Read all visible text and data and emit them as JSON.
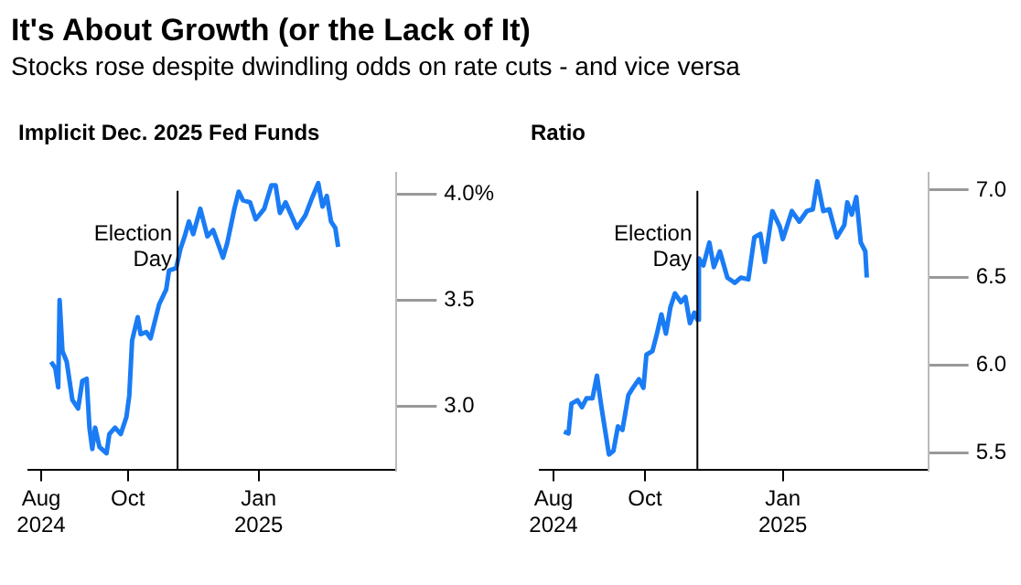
{
  "chart_data": [
    {
      "type": "line",
      "title": "Implicit Dec. 2025 Fed Funds",
      "annotations": [
        "It's About Growth (or the Lack of It)",
        "Stocks rose despite dwindling odds on rate cuts - and vice versa"
      ],
      "x": [
        "2024-08-08",
        "2024-08-11",
        "2024-08-13",
        "2024-08-14",
        "2024-08-16",
        "2024-08-19",
        "2024-08-23",
        "2024-08-27",
        "2024-08-30",
        "2024-09-02",
        "2024-09-04",
        "2024-09-06",
        "2024-09-08",
        "2024-09-11",
        "2024-09-16",
        "2024-09-18",
        "2024-09-22",
        "2024-09-26",
        "2024-09-30",
        "2024-10-02",
        "2024-10-04",
        "2024-10-08",
        "2024-10-10",
        "2024-10-14",
        "2024-10-17",
        "2024-10-23",
        "2024-10-28",
        "2024-10-30",
        "2024-11-04",
        "2024-11-07",
        "2024-11-10",
        "2024-11-13",
        "2024-11-16",
        "2024-11-21",
        "2024-11-26",
        "2024-11-30",
        "2024-12-07",
        "2024-12-10",
        "2024-12-15",
        "2024-12-18",
        "2024-12-21",
        "2024-12-26",
        "2024-12-30",
        "2025-01-05",
        "2025-01-10",
        "2025-01-13",
        "2025-01-16",
        "2025-01-20",
        "2025-01-28",
        "2025-02-03",
        "2025-02-07",
        "2025-02-12",
        "2025-02-15",
        "2025-02-18",
        "2025-02-21",
        "2025-02-24",
        "2025-02-26"
      ],
      "series": [
        {
          "color": "#1a7cf5",
          "values": [
            3.21,
            3.18,
            3.09,
            3.5,
            3.26,
            3.21,
            3.03,
            2.99,
            3.12,
            3.13,
            2.9,
            2.8,
            2.9,
            2.81,
            2.78,
            2.87,
            2.9,
            2.87,
            2.95,
            3.05,
            3.31,
            3.42,
            3.34,
            3.35,
            3.32,
            3.48,
            3.55,
            3.64,
            3.65,
            3.74,
            3.8,
            3.87,
            3.81,
            3.93,
            3.8,
            3.83,
            3.7,
            3.77,
            3.93,
            4.01,
            3.97,
            3.96,
            3.88,
            3.93,
            4.04,
            4.04,
            3.91,
            3.96,
            3.84,
            3.9,
            3.97,
            4.05,
            3.94,
            3.99,
            3.87,
            3.84,
            3.75
          ]
        }
      ],
      "xlim": [
        "2024-07-23",
        "2025-04-08"
      ],
      "xticks": [
        {
          "value": "2024-08-01",
          "label": "Aug 2024"
        },
        {
          "value": "2024-10-01",
          "label": "Oct"
        },
        {
          "value": "2025-01-01",
          "label": "Jan 2025"
        }
      ],
      "ylim": [
        2.7,
        4.1
      ],
      "yticks": [
        {
          "value": 3.0,
          "label": "3.0"
        },
        3.5,
        {
          "value": 4.0,
          "label": "4.0%"
        }
      ],
      "ref_lines": [
        {
          "axis": "x",
          "value": "2024-11-05",
          "label": "Election Day",
          "color": "#000000"
        }
      ],
      "legend": false,
      "marker": "none",
      "line_style": "solid"
    },
    {
      "type": "line",
      "title": "Ratio",
      "x": [
        "2024-08-08",
        "2024-08-11",
        "2024-08-13",
        "2024-08-17",
        "2024-08-20",
        "2024-08-23",
        "2024-08-27",
        "2024-08-30",
        "2024-09-02",
        "2024-09-07",
        "2024-09-10",
        "2024-09-13",
        "2024-09-16",
        "2024-09-20",
        "2024-09-23",
        "2024-09-27",
        "2024-09-30",
        "2024-10-02",
        "2024-10-06",
        "2024-10-09",
        "2024-10-12",
        "2024-10-15",
        "2024-10-18",
        "2024-10-21",
        "2024-10-25",
        "2024-10-28",
        "2024-10-31",
        "2024-11-03",
        "2024-11-05",
        "2024-11-06",
        "2024-11-09",
        "2024-11-13",
        "2024-11-16",
        "2024-11-20",
        "2024-11-25",
        "2024-11-30",
        "2024-12-04",
        "2024-12-09",
        "2024-12-13",
        "2024-12-17",
        "2024-12-20",
        "2024-12-25",
        "2024-12-30",
        "2025-01-01",
        "2025-01-07",
        "2025-01-12",
        "2025-01-17",
        "2025-01-21",
        "2025-01-24",
        "2025-01-28",
        "2025-02-01",
        "2025-02-06",
        "2025-02-11",
        "2025-02-13",
        "2025-02-16",
        "2025-02-19",
        "2025-02-22",
        "2025-02-25",
        "2025-02-26"
      ],
      "series": [
        {
          "color": "#1a7cf5",
          "values": [
            5.62,
            5.61,
            5.78,
            5.8,
            5.76,
            5.81,
            5.81,
            5.94,
            5.76,
            5.49,
            5.51,
            5.65,
            5.63,
            5.83,
            5.87,
            5.92,
            5.87,
            6.06,
            6.08,
            6.18,
            6.29,
            6.18,
            6.33,
            6.41,
            6.36,
            6.39,
            6.24,
            6.3,
            6.26,
            6.61,
            6.57,
            6.7,
            6.56,
            6.65,
            6.5,
            6.47,
            6.5,
            6.49,
            6.73,
            6.75,
            6.59,
            6.88,
            6.79,
            6.72,
            6.88,
            6.82,
            6.88,
            6.89,
            7.05,
            6.88,
            6.89,
            6.73,
            6.8,
            6.93,
            6.86,
            6.96,
            6.7,
            6.65,
            6.5
          ]
        }
      ],
      "xlim": [
        "2024-07-23",
        "2025-04-08"
      ],
      "xticks": [
        {
          "value": "2024-08-01",
          "label": "Aug 2024"
        },
        {
          "value": "2024-10-01",
          "label": "Oct"
        },
        {
          "value": "2025-01-01",
          "label": "Jan 2025"
        }
      ],
      "ylim": [
        5.4,
        7.1
      ],
      "yticks": [
        5.5,
        {
          "value": 6.0,
          "label": "6.0"
        },
        6.5,
        {
          "value": 7.0,
          "label": "7.0"
        }
      ],
      "ref_lines": [
        {
          "axis": "x",
          "value": "2024-11-05",
          "label": "Election Day",
          "color": "#000000"
        }
      ],
      "legend": false,
      "marker": "none",
      "line_style": "solid"
    }
  ]
}
